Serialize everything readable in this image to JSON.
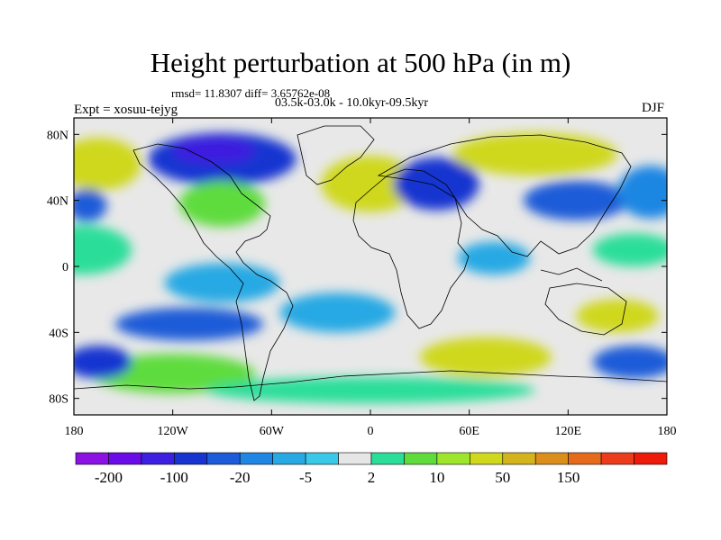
{
  "title": "Height perturbation at 500 hPa (in m)",
  "stats": "rmsd= 11.8307 diff= 3.65762e-08",
  "period": "03.5k-03.0k - 10.0kyr-09.5kyr",
  "experiment": "Expt = xosuu-tejyg",
  "season": "DJF",
  "map": {
    "projection": "cylindrical equidistant",
    "lon_range": [
      -180,
      180
    ],
    "lat_range": [
      -90,
      90
    ],
    "lon_ticks": [
      {
        "value": -180,
        "label": "180"
      },
      {
        "value": -120,
        "label": "120W"
      },
      {
        "value": -60,
        "label": "60W"
      },
      {
        "value": 0,
        "label": "0"
      },
      {
        "value": 60,
        "label": "60E"
      },
      {
        "value": 120,
        "label": "120E"
      },
      {
        "value": 180,
        "label": "180"
      }
    ],
    "lat_ticks": [
      {
        "value": 80,
        "label": "80N"
      },
      {
        "value": 40,
        "label": "40N"
      },
      {
        "value": 0,
        "label": "0"
      },
      {
        "value": -40,
        "label": "40S"
      },
      {
        "value": -80,
        "label": "80S"
      }
    ],
    "background_color": "#e8e8e8",
    "field_levels": [
      {
        "lon": -165,
        "lat": 62,
        "level": 12,
        "rlon": 26,
        "rlat": 16
      },
      {
        "lon": -90,
        "lat": 65,
        "level": 3,
        "rlon": 45,
        "rlat": 16
      },
      {
        "lon": -95,
        "lat": 70,
        "level": 2,
        "rlon": 25,
        "rlat": 8
      },
      {
        "lon": -90,
        "lat": 38,
        "level": 10,
        "rlon": 26,
        "rlat": 14
      },
      {
        "lon": -172,
        "lat": 37,
        "level": 4,
        "rlon": 12,
        "rlat": 10
      },
      {
        "lon": -175,
        "lat": 10,
        "level": 9,
        "rlon": 30,
        "rlat": 15
      },
      {
        "lon": 0,
        "lat": 50,
        "level": 12,
        "rlon": 30,
        "rlat": 17
      },
      {
        "lon": 40,
        "lat": 50,
        "level": 3,
        "rlon": 26,
        "rlat": 16
      },
      {
        "lon": 100,
        "lat": 68,
        "level": 12,
        "rlon": 50,
        "rlat": 13
      },
      {
        "lon": 125,
        "lat": 40,
        "level": 4,
        "rlon": 32,
        "rlat": 12
      },
      {
        "lon": 170,
        "lat": 45,
        "level": 5,
        "rlon": 20,
        "rlat": 16
      },
      {
        "lon": 160,
        "lat": 10,
        "level": 9,
        "rlon": 25,
        "rlat": 10
      },
      {
        "lon": 75,
        "lat": 5,
        "level": 6,
        "rlon": 22,
        "rlat": 10
      },
      {
        "lon": -90,
        "lat": -10,
        "level": 6,
        "rlon": 35,
        "rlat": 12
      },
      {
        "lon": -110,
        "lat": -35,
        "level": 4,
        "rlon": 45,
        "rlat": 10
      },
      {
        "lon": -20,
        "lat": -28,
        "level": 6,
        "rlon": 35,
        "rlat": 12
      },
      {
        "lon": -120,
        "lat": -65,
        "level": 10,
        "rlon": 50,
        "rlat": 12
      },
      {
        "lon": -165,
        "lat": -58,
        "level": 3,
        "rlon": 20,
        "rlat": 10
      },
      {
        "lon": 70,
        "lat": -55,
        "level": 12,
        "rlon": 40,
        "rlat": 12
      },
      {
        "lon": 150,
        "lat": -30,
        "level": 12,
        "rlon": 25,
        "rlat": 10
      },
      {
        "lon": 160,
        "lat": -58,
        "level": 4,
        "rlon": 25,
        "rlat": 10
      },
      {
        "lon": 0,
        "lat": -75,
        "level": 9,
        "rlon": 100,
        "rlat": 8
      }
    ]
  },
  "colorbar": {
    "colors": [
      "#8b12e3",
      "#6a0be8",
      "#3c1fe0",
      "#1734d0",
      "#1d5bd8",
      "#1f86e3",
      "#28a9e4",
      "#39c8e8",
      "#e6e6e6",
      "#2ade9a",
      "#5fdc3c",
      "#9ee62c",
      "#cfd81c",
      "#d4b41c",
      "#dc8e1c",
      "#e66a1c",
      "#ec3c1c",
      "#ee1a0a"
    ],
    "labels": [
      {
        "after_index": 0,
        "text": "-200"
      },
      {
        "after_index": 2,
        "text": "-100"
      },
      {
        "after_index": 4,
        "text": "-20"
      },
      {
        "after_index": 6,
        "text": "-5"
      },
      {
        "after_index": 8,
        "text": "2"
      },
      {
        "after_index": 10,
        "text": "10"
      },
      {
        "after_index": 12,
        "text": "50"
      },
      {
        "after_index": 14,
        "text": "150"
      }
    ]
  }
}
